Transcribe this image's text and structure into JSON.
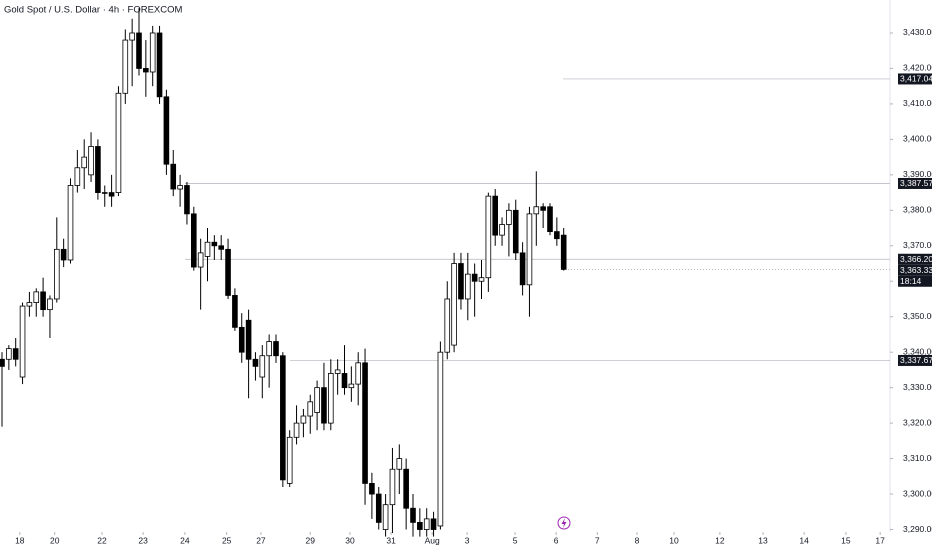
{
  "chart_data": {
    "type": "candlestick",
    "title": "Gold Spot / U.S. Dollar · 4h · FOREXCOM",
    "open": [
      3338,
      3338,
      3341,
      3333,
      3353,
      3354,
      3357,
      3352,
      3355,
      3369,
      3366,
      3387,
      3392,
      3390,
      3398,
      3385,
      3385,
      3385,
      3413,
      3428,
      3430,
      3420,
      3419,
      3430,
      3412,
      3393,
      3386,
      3387,
      3379,
      3364,
      3367,
      3371,
      3370,
      3369,
      3356,
      3347,
      3349,
      3338,
      3333,
      3339,
      3343,
      3339,
      3303,
      3316,
      3320,
      3322,
      3323,
      3330,
      3320,
      3334,
      3334,
      3330,
      3331,
      3337,
      3303,
      3300,
      3290,
      3297,
      3307,
      3307,
      3296,
      3292,
      3290,
      3293,
      3291,
      3340,
      3342,
      3365,
      3355,
      3362,
      3360,
      3361,
      3384,
      3373,
      3376,
      3380,
      3368,
      3359,
      3379,
      3381,
      3381,
      3374,
      3373
    ],
    "high": [
      3340,
      3342,
      3344,
      3354,
      3357,
      3358,
      3361,
      3356,
      3378,
      3372,
      3389,
      3397,
      3400,
      3402,
      3400,
      3387,
      3390,
      3415,
      3431,
      3434,
      3437,
      3428,
      3432,
      3432,
      3414,
      3397,
      3390,
      3388,
      3381,
      3372,
      3375,
      3373,
      3373,
      3372,
      3358,
      3351,
      3352,
      3340,
      3342,
      3345,
      3345,
      3340,
      3318,
      3325,
      3324,
      3328,
      3332,
      3337,
      3338,
      3338,
      3342,
      3336,
      3340,
      3341,
      3306,
      3302,
      3300,
      3313,
      3314,
      3310,
      3300,
      3296,
      3296,
      3295,
      3343,
      3360,
      3368,
      3368,
      3368,
      3365,
      3366,
      3385,
      3386,
      3378,
      3382,
      3383,
      3371,
      3381,
      3391,
      3382,
      3382,
      3378,
      3375
    ],
    "low": [
      3319,
      3335,
      3336,
      3331,
      3350,
      3350,
      3350,
      3344,
      3354,
      3364,
      3365,
      3385,
      3386,
      3388,
      3383,
      3381,
      3381,
      3384,
      3410,
      3415,
      3418,
      3412,
      3415,
      3410,
      3390,
      3384,
      3381,
      3376,
      3363,
      3352,
      3360,
      3366,
      3366,
      3355,
      3346,
      3337,
      3327,
      3332,
      3327,
      3330,
      3337,
      3302,
      3302,
      3314,
      3316,
      3317,
      3318,
      3318,
      3318,
      3328,
      3328,
      3326,
      3325,
      3297,
      3293,
      3290,
      3288,
      3289,
      3300,
      3290,
      3288,
      3288,
      3288,
      3288,
      3290,
      3338,
      3340,
      3352,
      3349,
      3350,
      3355,
      3357,
      3370,
      3370,
      3367,
      3366,
      3356,
      3350,
      3370,
      3375,
      3373,
      3370,
      3363
    ],
    "close": [
      3336,
      3341,
      3338,
      3353,
      3354,
      3357,
      3352,
      3355,
      3369,
      3366,
      3387,
      3392,
      3395,
      3398,
      3385,
      3385,
      3384,
      3413,
      3428,
      3430,
      3420,
      3419,
      3430,
      3412,
      3393,
      3386,
      3387,
      3379,
      3364,
      3368,
      3371,
      3370,
      3369,
      3356,
      3347,
      3340,
      3338,
      3336,
      3339,
      3343,
      3339,
      3304,
      3316,
      3320,
      3322,
      3326,
      3330,
      3320,
      3334,
      3335,
      3330,
      3331,
      3337,
      3303,
      3300,
      3292,
      3297,
      3307,
      3310,
      3296,
      3292,
      3290,
      3293,
      3290,
      3340,
      3355,
      3365,
      3355,
      3362,
      3360,
      3361,
      3384,
      3373,
      3376,
      3380,
      3368,
      3359,
      3379,
      3381,
      3380,
      3374,
      3372,
      3363.33
    ],
    "up_color": "#ffffff",
    "down_color": "#000000",
    "wick_color": "#000000",
    "ylim": [
      3289.3,
      3439.3
    ],
    "yticks": [
      {
        "value": 3290,
        "label": "3,290.00"
      },
      {
        "value": 3300,
        "label": "3,300.00"
      },
      {
        "value": 3310,
        "label": "3,310.00"
      },
      {
        "value": 3320,
        "label": "3,320.00"
      },
      {
        "value": 3330,
        "label": "3,330.00"
      },
      {
        "value": 3340,
        "label": "3,340.00"
      },
      {
        "value": 3350,
        "label": "3,350.00"
      },
      {
        "value": 3360,
        "label": "3,360.00"
      },
      {
        "value": 3370,
        "label": "3,370.00"
      },
      {
        "value": 3380,
        "label": "3,380.00"
      },
      {
        "value": 3390,
        "label": "3,390.00"
      },
      {
        "value": 3400,
        "label": "3,400.00"
      },
      {
        "value": 3410,
        "label": "3,410.00"
      },
      {
        "value": 3420,
        "label": "3,420.00"
      },
      {
        "value": 3430,
        "label": "3,430.00"
      }
    ],
    "xticks": [
      {
        "value": 2.6,
        "label": "18"
      },
      {
        "value": 7.7,
        "label": "20"
      },
      {
        "value": 14.6,
        "label": "22"
      },
      {
        "value": 20.6,
        "label": "23"
      },
      {
        "value": 26.7,
        "label": "24"
      },
      {
        "value": 32.8,
        "label": "25"
      },
      {
        "value": 37.8,
        "label": "27"
      },
      {
        "value": 45,
        "label": "29"
      },
      {
        "value": 50.8,
        "label": "30"
      },
      {
        "value": 56.8,
        "label": "31"
      },
      {
        "value": 62.8,
        "label": "Aug"
      },
      {
        "value": 67.9,
        "label": "3"
      },
      {
        "value": 74.9,
        "label": "5"
      },
      {
        "value": 80.9,
        "label": "6"
      },
      {
        "value": 86.9,
        "label": "7"
      },
      {
        "value": 92.7,
        "label": "8"
      },
      {
        "value": 98.1,
        "label": "10"
      },
      {
        "value": 104.8,
        "label": "12"
      },
      {
        "value": 111.1,
        "label": "13"
      },
      {
        "value": 117.1,
        "label": "14"
      },
      {
        "value": 123.2,
        "label": "15"
      },
      {
        "value": 128.2,
        "label": "17"
      }
    ],
    "grid": false,
    "levels": [
      {
        "value": 3417.04,
        "label": "3,417.04"
      },
      {
        "value": 3387.57,
        "label": "3,387.57"
      },
      {
        "value": 3366.2,
        "label": "3,366.20"
      },
      {
        "value": 3337.67,
        "label": "3,337.67"
      }
    ],
    "current_price": {
      "value": 3363.33,
      "label": "3,363.33",
      "countdown": "18:14"
    }
  }
}
